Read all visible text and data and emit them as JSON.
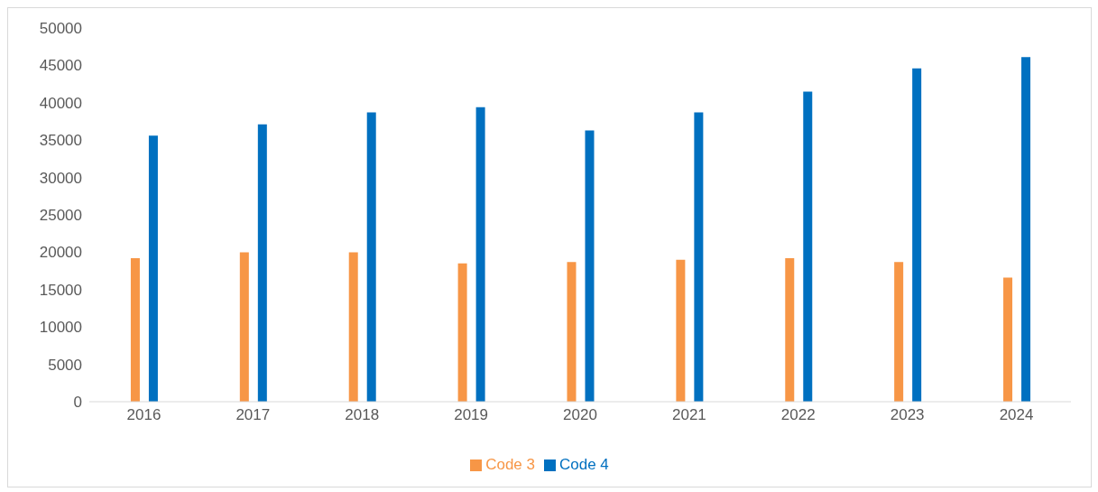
{
  "chart_data": {
    "type": "bar",
    "categories": [
      "2016",
      "2017",
      "2018",
      "2019",
      "2020",
      "2021",
      "2022",
      "2023",
      "2024"
    ],
    "series": [
      {
        "name": "Code 3",
        "color": "#f79646",
        "values": [
          19200,
          20000,
          20000,
          18500,
          18700,
          19000,
          19200,
          18700,
          16600
        ]
      },
      {
        "name": "Code 4",
        "color": "#0070c0",
        "values": [
          35600,
          37100,
          38700,
          39400,
          36300,
          38700,
          41500,
          44600,
          46100
        ]
      }
    ],
    "ylim": [
      0,
      50000
    ],
    "yticks": [
      0,
      5000,
      10000,
      15000,
      20000,
      25000,
      30000,
      35000,
      40000,
      45000,
      50000
    ],
    "grid": false,
    "legend": "bottom"
  }
}
